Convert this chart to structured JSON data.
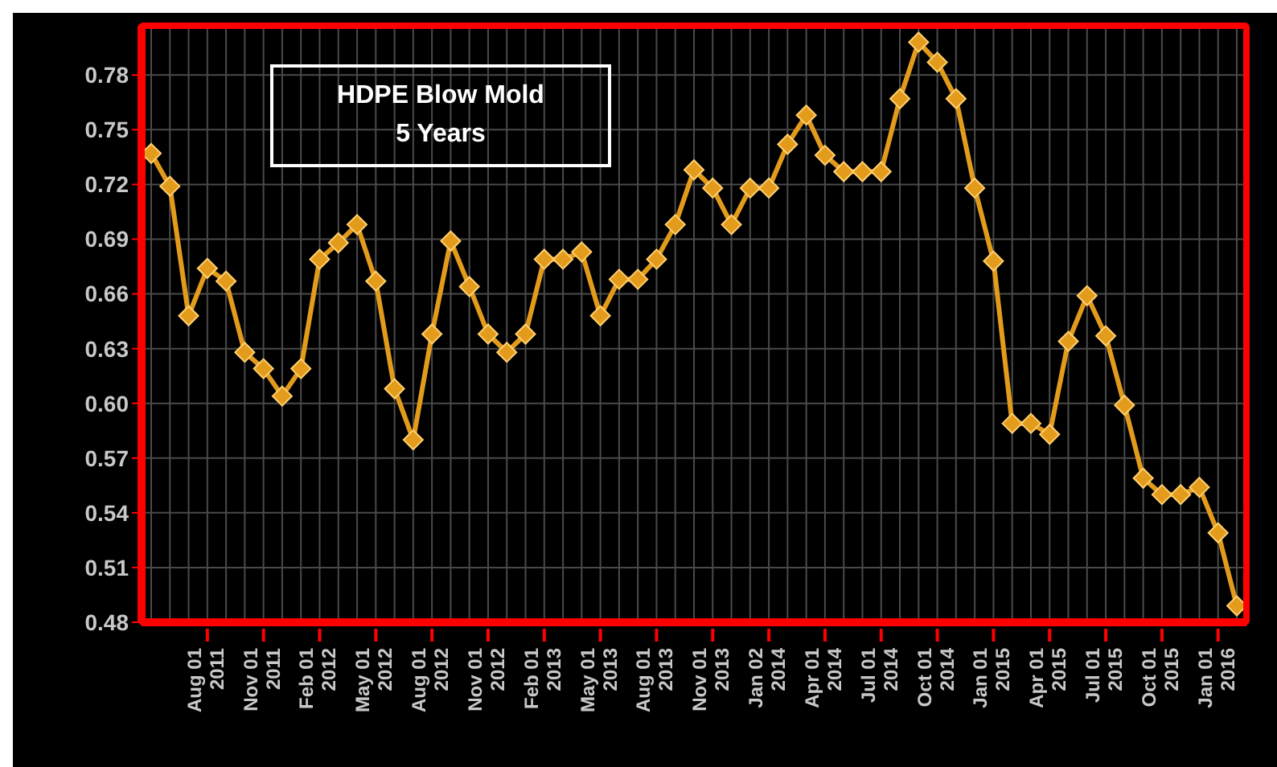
{
  "chart_data": {
    "type": "line",
    "title": "HDPE Blow Mold",
    "subtitle": "5 Years",
    "categories": [
      null,
      null,
      null,
      "Aug 01 2011",
      null,
      null,
      "Nov 01 2011",
      null,
      null,
      "Feb 01 2012",
      null,
      null,
      "May 01 2012",
      null,
      null,
      "Aug 01 2012",
      null,
      null,
      "Nov 01 2012",
      null,
      null,
      "Feb 01 2013",
      null,
      null,
      "May 01 2013",
      null,
      null,
      "Aug 01 2013",
      null,
      null,
      "Nov 01 2013",
      null,
      null,
      "Jan 02 2014",
      null,
      null,
      "Apr 01 2014",
      null,
      null,
      "Jul 01 2014",
      null,
      null,
      "Oct 01 2014",
      null,
      null,
      "Jan 01 2015",
      null,
      null,
      "Apr 01 2015",
      null,
      null,
      "Jul 01 2015",
      null,
      null,
      "Oct 01 2015",
      null,
      null,
      "Jan 01 2016",
      null
    ],
    "series": [
      {
        "color": "#e39b1c",
        "values": [
          0.737,
          0.719,
          0.648,
          0.674,
          0.667,
          0.628,
          0.619,
          0.604,
          0.619,
          0.679,
          0.688,
          0.698,
          0.667,
          0.608,
          0.58,
          0.638,
          0.689,
          0.664,
          0.638,
          0.628,
          0.638,
          0.679,
          0.679,
          0.683,
          0.648,
          0.668,
          0.668,
          0.679,
          0.698,
          0.728,
          0.718,
          0.698,
          0.718,
          0.718,
          0.742,
          0.758,
          0.736,
          0.727,
          0.727,
          0.727,
          0.767,
          0.798,
          0.787,
          0.767,
          0.718,
          0.678,
          0.589,
          0.589,
          0.583,
          0.634,
          0.659,
          0.637,
          0.599,
          0.559,
          0.55,
          0.55,
          0.554,
          0.529,
          0.489
        ]
      }
    ],
    "ylim": [
      0.48,
      0.807
    ],
    "yticks": [
      0.48,
      0.51,
      0.54,
      0.57,
      {
        "value": 0.6,
        "label": "0.60"
      },
      0.63,
      0.66,
      0.69,
      0.72,
      0.75,
      0.78
    ],
    "grid": true,
    "marker": "diamond",
    "line_style": "solid"
  }
}
